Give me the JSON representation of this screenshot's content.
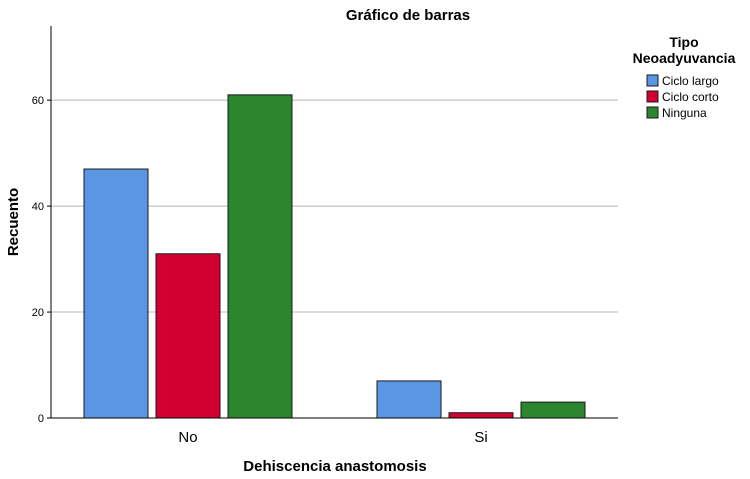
{
  "chart_data": {
    "type": "bar",
    "title": "Gráfico de barras",
    "xlabel": "Dehiscencia anastomosis",
    "ylabel": "Recuento",
    "categories": [
      "No",
      "Si"
    ],
    "series": [
      {
        "name": "Ciclo largo",
        "color": "#5a96e4",
        "values": [
          47,
          7
        ]
      },
      {
        "name": "Ciclo corto",
        "color": "#d10031",
        "values": [
          31,
          1
        ]
      },
      {
        "name": "Ninguna",
        "color": "#2b862e",
        "values": [
          61,
          3
        ]
      }
    ],
    "ylim": [
      0,
      74
    ],
    "yticks": [
      0,
      20,
      40,
      60
    ],
    "grid": true,
    "legend": {
      "title_lines": [
        "Tipo",
        "Neoadyuvancia"
      ],
      "placement": "top-right"
    }
  }
}
